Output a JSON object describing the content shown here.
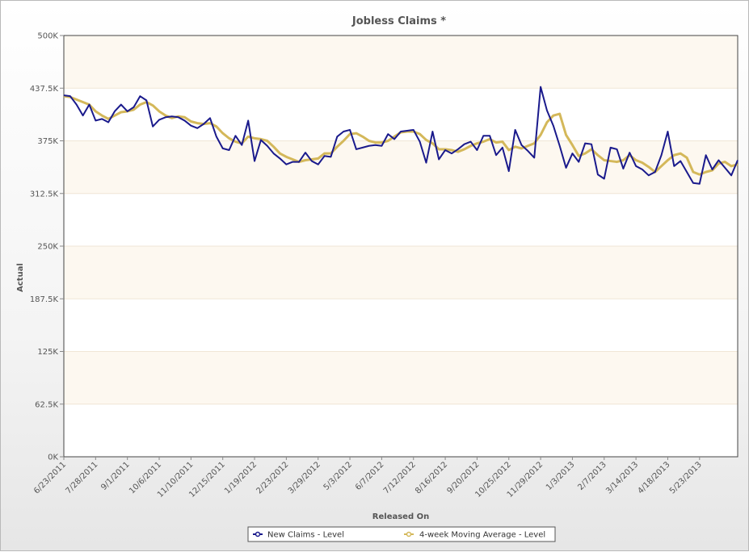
{
  "chart_data": {
    "type": "line",
    "title": "Jobless Claims *",
    "xlabel": "Released On",
    "ylabel": "Actual",
    "ylim": [
      0,
      500000
    ],
    "y_ticks": [
      {
        "value": 0,
        "label": "0K"
      },
      {
        "value": 62500,
        "label": "62.5K"
      },
      {
        "value": 125000,
        "label": "125K"
      },
      {
        "value": 187500,
        "label": "187.5K"
      },
      {
        "value": 250000,
        "label": "250K"
      },
      {
        "value": 312500,
        "label": "312.5K"
      },
      {
        "value": 375000,
        "label": "375K"
      },
      {
        "value": 437500,
        "label": "437.5K"
      },
      {
        "value": 500000,
        "label": "500K"
      }
    ],
    "x_tick_labels": [
      {
        "index": 0,
        "label": "6/23/2011"
      },
      {
        "index": 5,
        "label": "7/28/2011"
      },
      {
        "index": 10,
        "label": "9/1/2011"
      },
      {
        "index": 15,
        "label": "10/6/2011"
      },
      {
        "index": 20,
        "label": "11/10/2011"
      },
      {
        "index": 25,
        "label": "12/15/2011"
      },
      {
        "index": 30,
        "label": "1/19/2012"
      },
      {
        "index": 35,
        "label": "2/23/2012"
      },
      {
        "index": 40,
        "label": "3/29/2012"
      },
      {
        "index": 45,
        "label": "5/3/2012"
      },
      {
        "index": 50,
        "label": "6/7/2012"
      },
      {
        "index": 55,
        "label": "7/12/2012"
      },
      {
        "index": 60,
        "label": "8/16/2012"
      },
      {
        "index": 65,
        "label": "9/20/2012"
      },
      {
        "index": 70,
        "label": "10/25/2012"
      },
      {
        "index": 75,
        "label": "11/29/2012"
      },
      {
        "index": 80,
        "label": "1/3/2013"
      },
      {
        "index": 85,
        "label": "2/7/2013"
      },
      {
        "index": 90,
        "label": "3/14/2013"
      },
      {
        "index": 95,
        "label": "4/18/2013"
      },
      {
        "index": 100,
        "label": "5/23/2013"
      }
    ],
    "x_count": 107,
    "grid": true,
    "legend_position": "bottom-center",
    "series": [
      {
        "name": "New Claims - Level",
        "color": "#1a1a8c",
        "values": [
          429000,
          428000,
          418000,
          405000,
          418000,
          399000,
          401000,
          397000,
          410000,
          418000,
          410000,
          415000,
          428000,
          423000,
          392000,
          400000,
          403000,
          404000,
          403000,
          399000,
          393000,
          390000,
          395000,
          402000,
          380000,
          366000,
          364000,
          381000,
          370000,
          399000,
          351000,
          376000,
          369000,
          360000,
          354000,
          347000,
          350000,
          350000,
          361000,
          351000,
          347000,
          357000,
          356000,
          380000,
          386000,
          388000,
          365000,
          367000,
          369000,
          370000,
          369000,
          383000,
          377000,
          386000,
          387000,
          388000,
          374000,
          349000,
          386000,
          353000,
          364000,
          360000,
          365000,
          371000,
          374000,
          364000,
          381000,
          381000,
          358000,
          367000,
          339000,
          388000,
          370000,
          363000,
          355000,
          439000,
          411000,
          393000,
          369000,
          343000,
          360000,
          350000,
          372000,
          371000,
          335000,
          330000,
          367000,
          365000,
          342000,
          361000,
          345000,
          341000,
          334000,
          338000,
          358000,
          386000,
          345000,
          351000,
          338000,
          325000,
          324000,
          358000,
          341000,
          352000,
          343000,
          334000,
          352000
        ]
      },
      {
        "name": "4-week Moving Average - Level",
        "color": "#d4b85a",
        "values": [
          428000,
          427000,
          424000,
          421000,
          418000,
          410000,
          405000,
          401000,
          405000,
          409000,
          410000,
          412000,
          418000,
          421000,
          417000,
          410000,
          405000,
          402000,
          404000,
          403000,
          398000,
          396000,
          395000,
          396000,
          392000,
          384000,
          378000,
          374000,
          372000,
          380000,
          378000,
          377000,
          375000,
          368000,
          360000,
          356000,
          353000,
          350000,
          352000,
          353000,
          354000,
          360000,
          360000,
          368000,
          375000,
          383000,
          384000,
          380000,
          375000,
          373000,
          373000,
          375000,
          380000,
          385000,
          386000,
          386000,
          383000,
          376000,
          372000,
          365000,
          365000,
          364000,
          362000,
          365000,
          369000,
          372000,
          374000,
          377000,
          373000,
          374000,
          364000,
          368000,
          366000,
          369000,
          372000,
          382000,
          397000,
          405000,
          407000,
          382000,
          370000,
          357000,
          360000,
          365000,
          358000,
          352000,
          351000,
          350000,
          352000,
          358000,
          352000,
          349000,
          344000,
          338000,
          345000,
          352000,
          358000,
          360000,
          355000,
          338000,
          335000,
          338000,
          340000,
          348000,
          350000,
          345000,
          347000
        ]
      }
    ]
  }
}
